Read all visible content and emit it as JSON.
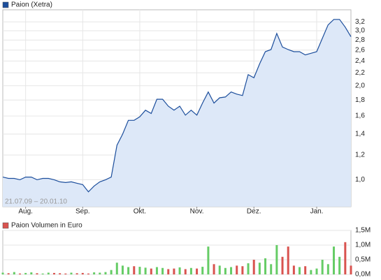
{
  "chart_data": [
    {
      "type": "area",
      "legend": "Paion (Xetra)",
      "color": "#1c4e9c",
      "fill": "#dde8f8",
      "log_scale": true,
      "grid": true,
      "annotation": "21.07.09 – 20.01.10",
      "categories": [
        null,
        null,
        null,
        null,
        "Aug.",
        null,
        null,
        null,
        null,
        null,
        null,
        null,
        null,
        null,
        "Sep.",
        null,
        null,
        null,
        null,
        null,
        null,
        null,
        null,
        null,
        "Okt.",
        null,
        null,
        null,
        null,
        null,
        null,
        null,
        null,
        null,
        "Nov.",
        null,
        null,
        null,
        null,
        null,
        null,
        null,
        null,
        null,
        "Dez.",
        null,
        null,
        null,
        null,
        null,
        null,
        null,
        null,
        null,
        null,
        "Jan.",
        null,
        null,
        null,
        null,
        null,
        null
      ],
      "values": [
        1.02,
        1.01,
        1.01,
        1.0,
        1.02,
        1.02,
        1.0,
        1.01,
        1.01,
        1.0,
        0.985,
        0.98,
        0.985,
        0.975,
        0.965,
        0.915,
        0.955,
        0.985,
        1.0,
        1.02,
        1.29,
        1.4,
        1.55,
        1.55,
        1.59,
        1.67,
        1.63,
        1.81,
        1.81,
        1.72,
        1.67,
        1.72,
        1.61,
        1.67,
        1.61,
        1.76,
        1.91,
        1.76,
        1.83,
        1.84,
        1.91,
        1.88,
        1.86,
        2.17,
        2.12,
        2.35,
        2.57,
        2.61,
        2.94,
        2.66,
        2.61,
        2.57,
        2.57,
        2.51,
        2.54,
        2.57,
        2.84,
        3.13,
        3.26,
        3.26,
        3.08,
        2.87
      ],
      "ylim": [
        0.82,
        3.5
      ],
      "yticks": [
        {
          "value": 1.0,
          "label": "1,0"
        },
        {
          "value": 1.2,
          "label": "1,2"
        },
        {
          "value": 1.4,
          "label": "1,4"
        },
        {
          "value": 1.6,
          "label": "1,6"
        },
        {
          "value": 1.8,
          "label": "1,8"
        },
        {
          "value": 2.0,
          "label": "2,0"
        },
        {
          "value": 2.2,
          "label": "2,2"
        },
        {
          "value": 2.4,
          "label": "2,4"
        },
        {
          "value": 2.6,
          "label": "2,6"
        },
        {
          "value": 2.8,
          "label": "2,8"
        },
        {
          "value": 3.0,
          "label": "3,0"
        },
        {
          "value": 3.2,
          "label": "3,2"
        }
      ]
    },
    {
      "type": "bar",
      "legend": "Paion Volumen in Euro",
      "color": "#d9534f",
      "grid": true,
      "values": [
        60000,
        40000,
        80000,
        30000,
        50000,
        70000,
        40000,
        30000,
        60000,
        50000,
        40000,
        30000,
        60000,
        40000,
        50000,
        30000,
        70000,
        60000,
        80000,
        150000,
        400000,
        300000,
        250000,
        280000,
        260000,
        230000,
        200000,
        250000,
        220000,
        180000,
        200000,
        240000,
        180000,
        220000,
        200000,
        260000,
        950000,
        350000,
        300000,
        220000,
        250000,
        300000,
        280000,
        380000,
        500000,
        400000,
        550000,
        350000,
        1000000,
        600000,
        950000,
        300000,
        250000,
        280000,
        150000,
        200000,
        500000,
        350000,
        950000,
        600000,
        1100000,
        300000
      ],
      "colors": [
        "#66cc66",
        "#d9534f",
        "#66cc66",
        "#d9534f",
        "#66cc66",
        "#66cc66",
        "#d9534f",
        "#66cc66",
        "#66cc66",
        "#d9534f",
        "#d9534f",
        "#d9534f",
        "#66cc66",
        "#d9534f",
        "#d9534f",
        "#d9534f",
        "#66cc66",
        "#66cc66",
        "#66cc66",
        "#66cc66",
        "#66cc66",
        "#66cc66",
        "#66cc66",
        "#d9534f",
        "#66cc66",
        "#66cc66",
        "#d9534f",
        "#66cc66",
        "#66cc66",
        "#d9534f",
        "#d9534f",
        "#66cc66",
        "#d9534f",
        "#66cc66",
        "#d9534f",
        "#66cc66",
        "#66cc66",
        "#d9534f",
        "#66cc66",
        "#66cc66",
        "#66cc66",
        "#d9534f",
        "#d9534f",
        "#66cc66",
        "#d9534f",
        "#66cc66",
        "#66cc66",
        "#66cc66",
        "#66cc66",
        "#d9534f",
        "#d9534f",
        "#d9534f",
        "#66cc66",
        "#d9534f",
        "#66cc66",
        "#66cc66",
        "#66cc66",
        "#66cc66",
        "#66cc66",
        "#66cc66",
        "#d9534f",
        "#d9534f"
      ],
      "ylim": [
        0,
        1500000
      ],
      "yticks": [
        {
          "value": 0,
          "label": "0,0M"
        },
        {
          "value": 500000,
          "label": "0,5M"
        },
        {
          "value": 1000000,
          "label": "1,0M"
        },
        {
          "value": 1500000,
          "label": "1,5M"
        }
      ]
    }
  ]
}
